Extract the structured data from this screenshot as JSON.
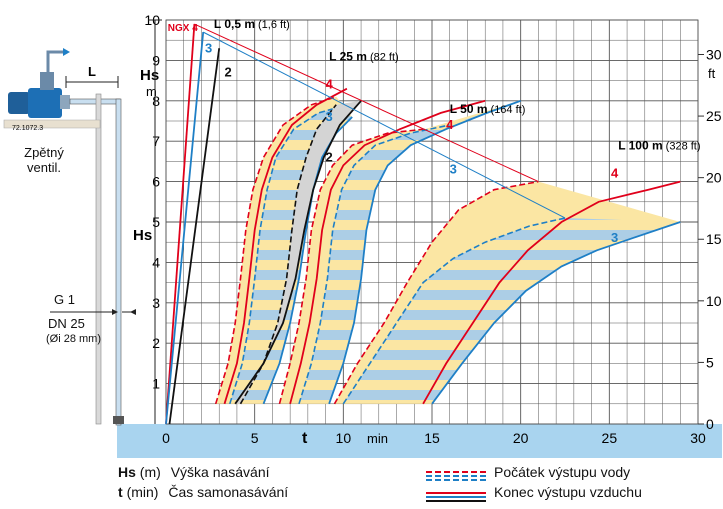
{
  "chart_data": {
    "type": "line",
    "x_axis": {
      "symbol": "t",
      "unit": "min",
      "range": [
        0,
        30
      ],
      "ticks": [
        0,
        5,
        10,
        15,
        20,
        25,
        30
      ]
    },
    "y_axis_left": {
      "symbol": "Hs",
      "unit": "m",
      "range": [
        0,
        10
      ],
      "ticks": [
        1,
        2,
        3,
        4,
        5,
        6,
        7,
        8,
        9,
        10
      ]
    },
    "y_axis_right": {
      "unit": "ft",
      "range": [
        0,
        32.8
      ],
      "ticks": [
        0,
        5,
        10,
        15,
        20,
        25,
        30
      ]
    },
    "pump_label": "NGX 4",
    "series_markers": [
      "2",
      "3",
      "4"
    ],
    "curve_groups": [
      {
        "label": "L 0,5 m",
        "label_ft": "(1,6 ft)",
        "curves": [
          {
            "marker": "4",
            "color": "#e0001b",
            "points": [
              [
                0,
                0
              ],
              [
                1.6,
                9.9
              ]
            ]
          },
          {
            "marker": "3",
            "color": "#1e7fc6",
            "points": [
              [
                0,
                0
              ],
              [
                2.1,
                9.7
              ]
            ]
          },
          {
            "marker": "2",
            "color": "#111111",
            "points": [
              [
                0.2,
                0
              ],
              [
                3.0,
                9.3
              ]
            ]
          }
        ]
      },
      {
        "label": "L 25 m",
        "label_ft": "(82 ft)",
        "start": [
          {
            "marker": "4",
            "color": "#e0001b",
            "points": [
              [
                2.8,
                0.5
              ],
              [
                3.5,
                1.5
              ],
              [
                3.9,
                2.5
              ],
              [
                4.2,
                3.6
              ],
              [
                4.5,
                4.8
              ],
              [
                4.9,
                5.8
              ],
              [
                5.5,
                6.6
              ],
              [
                6.6,
                7.4
              ],
              [
                8.2,
                7.9
              ],
              [
                9.6,
                8.1
              ]
            ]
          },
          {
            "marker": "3",
            "color": "#1e7fc6",
            "points": [
              [
                3.6,
                0.5
              ],
              [
                4.3,
                1.5
              ],
              [
                4.7,
                2.5
              ],
              [
                5.0,
                3.6
              ],
              [
                5.3,
                4.8
              ],
              [
                5.7,
                5.8
              ],
              [
                6.2,
                6.6
              ],
              [
                7.2,
                7.3
              ],
              [
                8.6,
                7.7
              ],
              [
                9.4,
                7.8
              ]
            ]
          },
          {
            "marker": "2",
            "color": "#111111",
            "points": [
              [
                4.2,
                0.5
              ],
              [
                5.5,
                1.5
              ],
              [
                6.3,
                2.5
              ],
              [
                6.8,
                3.6
              ],
              [
                7.1,
                4.8
              ],
              [
                7.4,
                5.8
              ],
              [
                7.9,
                6.6
              ],
              [
                8.5,
                7.3
              ],
              [
                9.6,
                7.9
              ]
            ]
          }
        ],
        "end": [
          {
            "marker": "4",
            "color": "#e0001b",
            "points": [
              [
                3.3,
                0.5
              ],
              [
                4.0,
                1.5
              ],
              [
                4.4,
                2.5
              ],
              [
                4.7,
                3.6
              ],
              [
                5.0,
                4.8
              ],
              [
                5.4,
                5.8
              ],
              [
                6.0,
                6.6
              ],
              [
                7.1,
                7.4
              ],
              [
                8.5,
                7.9
              ],
              [
                10.2,
                8.3
              ]
            ]
          },
          {
            "marker": "3",
            "color": "#1e7fc6",
            "points": [
              [
                5.5,
                0.5
              ],
              [
                6.4,
                1.5
              ],
              [
                7.0,
                2.5
              ],
              [
                7.5,
                3.6
              ],
              [
                7.9,
                4.8
              ],
              [
                8.3,
                5.8
              ],
              [
                8.8,
                6.6
              ],
              [
                9.6,
                7.2
              ],
              [
                10.5,
                7.6
              ]
            ]
          },
          {
            "marker": "2",
            "color": "#111111",
            "points": [
              [
                3.9,
                0.5
              ],
              [
                5.5,
                1.5
              ],
              [
                6.6,
                2.5
              ],
              [
                7.3,
                3.6
              ],
              [
                7.8,
                4.8
              ],
              [
                8.3,
                5.8
              ],
              [
                8.9,
                6.6
              ],
              [
                9.8,
                7.4
              ],
              [
                11.0,
                8.0
              ]
            ]
          }
        ]
      },
      {
        "label": "L 50 m",
        "label_ft": "(164 ft)",
        "start": [
          {
            "marker": "4",
            "color": "#e0001b",
            "points": [
              [
                6.4,
                0.5
              ],
              [
                7.0,
                1.5
              ],
              [
                7.5,
                2.5
              ],
              [
                7.9,
                3.6
              ],
              [
                8.2,
                4.8
              ],
              [
                8.7,
                5.8
              ],
              [
                9.4,
                6.4
              ],
              [
                10.5,
                6.9
              ],
              [
                12.5,
                7.2
              ],
              [
                14.6,
                7.3
              ]
            ]
          },
          {
            "marker": "3",
            "color": "#1e7fc6",
            "points": [
              [
                7.5,
                0.5
              ],
              [
                8.2,
                1.5
              ],
              [
                8.7,
                2.5
              ],
              [
                9.1,
                3.6
              ],
              [
                9.4,
                4.8
              ],
              [
                9.9,
                5.8
              ],
              [
                10.6,
                6.4
              ],
              [
                11.8,
                6.9
              ],
              [
                13.8,
                7.2
              ],
              [
                16.0,
                7.4
              ]
            ]
          }
        ],
        "end": [
          {
            "marker": "4",
            "color": "#e0001b",
            "points": [
              [
                7.0,
                0.5
              ],
              [
                7.6,
                1.5
              ],
              [
                8.1,
                2.5
              ],
              [
                8.5,
                3.6
              ],
              [
                8.8,
                4.8
              ],
              [
                9.3,
                5.8
              ],
              [
                10.0,
                6.4
              ],
              [
                11.2,
                6.9
              ],
              [
                13.2,
                7.3
              ],
              [
                15.5,
                7.7
              ],
              [
                18.0,
                8.0
              ]
            ]
          },
          {
            "marker": "3",
            "color": "#1e7fc6",
            "points": [
              [
                9.2,
                0.5
              ],
              [
                10.0,
                1.5
              ],
              [
                10.6,
                2.5
              ],
              [
                11.0,
                3.6
              ],
              [
                11.3,
                4.8
              ],
              [
                11.8,
                5.8
              ],
              [
                12.5,
                6.4
              ],
              [
                13.8,
                6.9
              ],
              [
                15.8,
                7.3
              ],
              [
                18.1,
                7.7
              ],
              [
                20.0,
                8.0
              ]
            ]
          }
        ]
      },
      {
        "label": "L 100 m",
        "label_ft": "(328 ft)",
        "start": [
          {
            "marker": "4",
            "color": "#e0001b",
            "points": [
              [
                9.5,
                0.5
              ],
              [
                10.8,
                1.5
              ],
              [
                12.3,
                2.5
              ],
              [
                13.6,
                3.5
              ],
              [
                15.0,
                4.5
              ],
              [
                16.5,
                5.3
              ],
              [
                18.5,
                5.8
              ],
              [
                21.0,
                6.0
              ]
            ]
          },
          {
            "marker": "3",
            "color": "#1e7fc6",
            "points": [
              [
                10.0,
                0.5
              ],
              [
                11.5,
                1.5
              ],
              [
                13.0,
                2.5
              ],
              [
                14.5,
                3.5
              ],
              [
                16.2,
                4.1
              ],
              [
                18.0,
                4.5
              ],
              [
                20.5,
                4.9
              ],
              [
                22.5,
                5.1
              ]
            ]
          }
        ],
        "end": [
          {
            "marker": "4",
            "color": "#e0001b",
            "points": [
              [
                14.5,
                0.5
              ],
              [
                15.8,
                1.5
              ],
              [
                17.3,
                2.5
              ],
              [
                18.8,
                3.5
              ],
              [
                20.4,
                4.3
              ],
              [
                22.3,
                5.0
              ],
              [
                24.4,
                5.5
              ],
              [
                27.2,
                5.8
              ],
              [
                29.0,
                6.0
              ]
            ]
          },
          {
            "marker": "3",
            "color": "#1e7fc6",
            "points": [
              [
                15.0,
                0.5
              ],
              [
                16.7,
                1.5
              ],
              [
                18.5,
                2.5
              ],
              [
                20.3,
                3.3
              ],
              [
                22.3,
                3.9
              ],
              [
                24.3,
                4.3
              ],
              [
                26.3,
                4.6
              ],
              [
                29.0,
                5.0
              ]
            ]
          }
        ]
      }
    ],
    "fill_colors": {
      "band": "#fbe6a3",
      "stripe": "#a8cdea",
      "gray": "#d4d4d4"
    },
    "grid": true
  },
  "diagram": {
    "label_L": "L",
    "ref_code": "72.1072.3",
    "check_valve_label": "Zpětný ventil.",
    "pipe_label_g": "G 1",
    "pipe_label_dn": "DN 25",
    "pipe_label_dia": "(Øi 28 mm)",
    "hs_label": "Hs"
  },
  "legend": {
    "hs_symbol": "Hs",
    "hs_unit": "(m)",
    "hs_text": "Výška nasávání",
    "t_symbol": "t",
    "t_unit": "(min)",
    "t_text": "Čas samonasávání",
    "dashed_text": "Počátek výstupu vody",
    "solid_text": "Konec výstupu vzduchu"
  },
  "colors": {
    "water": "#a9d4ef",
    "red": "#e0001b",
    "blue": "#1e7fc6",
    "black": "#111111"
  }
}
